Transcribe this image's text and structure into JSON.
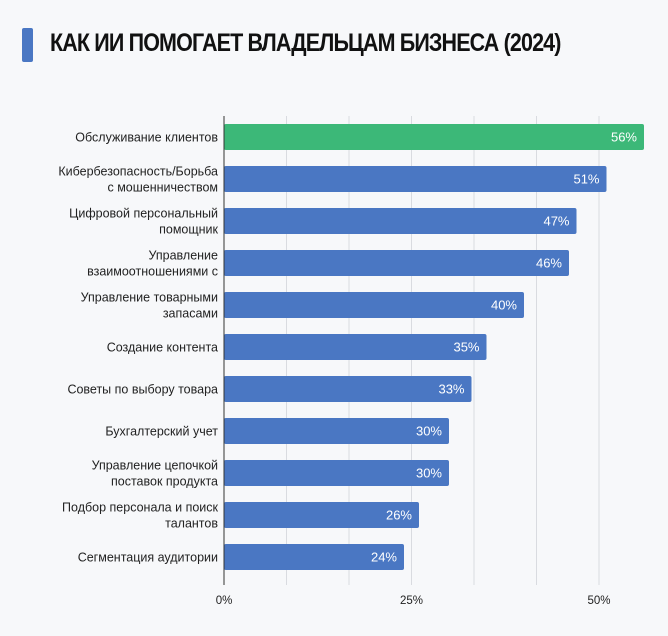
{
  "chart_data": {
    "type": "bar",
    "orientation": "horizontal",
    "title": "КАК ИИ ПОМОГАЕТ ВЛАДЕЛЬЦАМ БИЗНЕСА (2024)",
    "categories": [
      [
        "Обслуживание клиентов"
      ],
      [
        "Кибербезопасность/Борьба",
        "с мошенничеством"
      ],
      [
        "Цифровой персональный",
        "помощник"
      ],
      [
        "Управление",
        "взаимоотношениями с"
      ],
      [
        "Управление товарными",
        "запасами"
      ],
      [
        "Создание контента"
      ],
      [
        "Советы по выбору товара"
      ],
      [
        "Бухгалтерский учет"
      ],
      [
        "Управление цепочкой",
        "поставок продукта"
      ],
      [
        "Подбор персонала и поиск",
        "талантов"
      ],
      [
        "Сегментация аудитории"
      ]
    ],
    "values": [
      56,
      51,
      47,
      46,
      40,
      35,
      33,
      30,
      30,
      26,
      24
    ],
    "value_labels": [
      "56%",
      "51%",
      "47%",
      "46%",
      "40%",
      "35%",
      "33%",
      "30%",
      "30%",
      "26%",
      "24%"
    ],
    "highlight_index": 0,
    "xlim": [
      0,
      56
    ],
    "xticks": [
      0,
      25,
      50
    ],
    "xtick_labels": [
      "0%",
      "25%",
      "50%"
    ],
    "grid": true,
    "colors": {
      "bar": "#4a77c3",
      "highlight": "#3cb878",
      "title_mark": "#4a77c3"
    }
  }
}
